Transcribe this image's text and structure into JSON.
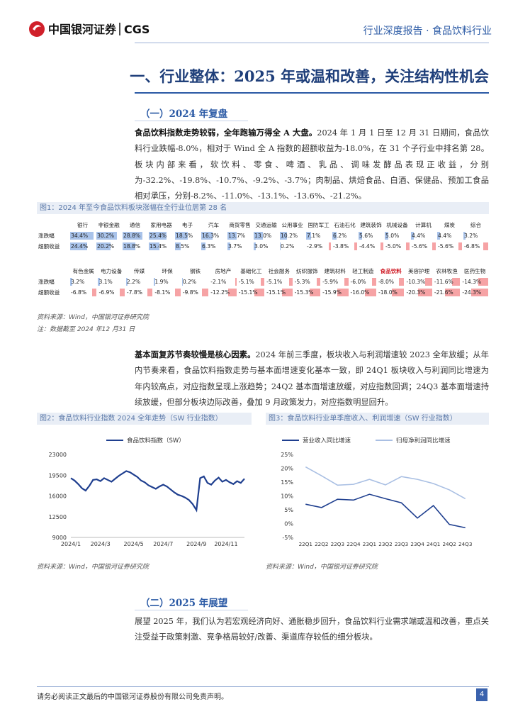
{
  "header": {
    "logo_cn": "中国银河证券",
    "logo_en": "CGS",
    "report_type": "行业深度报告 · 食品饮料行业"
  },
  "section_title": "一、行业整体：2025 年或温和改善，关注结构性机会",
  "subsection1": {
    "title": "（一）2024 年复盘",
    "paragraph1": {
      "lead": "食品饮料指数走势较弱，全年跑输万得全 A 大盘。",
      "text": "2024 年 1 月 1 日至 12 月 31 日期间，食品饮料行业跌幅-8.0%，相对于 Wind 全 A 指数的超额收益为-18.0%，在 31 个子行业中排名第 28。板块内部来看，软饮料、零食、啤酒、乳品、调味发酵品表现正收益，分别为-32.2%、-19.8%、-10.7%、-9.2%、-3.7%；肉制品、烘焙食品、白酒、保健品、预加工食品相对承压，分别-8.2%、-11.0%、-13.1%、-13.6%、-21.2%。"
    },
    "figure1": {
      "title": "图1：2024 年至今食品饮料板块涨幅在全行业位居第 28 名",
      "row_labels": [
        "涨跌幅",
        "超额收益"
      ],
      "highlight": "食品饮料",
      "blocks": [
        {
          "headers": [
            "银行",
            "非银金融",
            "通信",
            "家用电器",
            "电子",
            "汽车",
            "商贸零售",
            "交通运输",
            "公用事业",
            "国防军工",
            "石油石化",
            "建筑装饰",
            "机械设备",
            "计算机",
            "煤炭",
            "综合"
          ],
          "rows": [
            [
              "34.4%",
              "30.2%",
              "28.8%",
              "25.4%",
              "18.5%",
              "16.3%",
              "13.7%",
              "13.0%",
              "10.2%",
              "7.1%",
              "6.2%",
              "5.6%",
              "5.0%",
              "4.4%",
              "4.4%",
              "3.2%"
            ],
            [
              "24.4%",
              "20.2%",
              "18.8%",
              "15.4%",
              "8.5%",
              "6.3%",
              "3.7%",
              "3.0%",
              "0.2%",
              "-2.9%",
              "-3.8%",
              "-4.4%",
              "-5.0%",
              "-5.6%",
              "-5.6%",
              "-6.8%"
            ]
          ]
        },
        {
          "headers": [
            "有色金属",
            "电力设备",
            "传媒",
            "环保",
            "钢铁",
            "房地产",
            "基础化工",
            "社会服务",
            "纺织服饰",
            "建筑材料",
            "轻工制造",
            "食品饮料",
            "美容护理",
            "农林牧渔",
            "医药生物"
          ],
          "rows": [
            [
              "3.2%",
              "3.1%",
              "2.2%",
              "1.9%",
              "0.2%",
              "-2.1%",
              "-5.1%",
              "-5.1%",
              "-5.3%",
              "-5.9%",
              "-6.0%",
              "-8.0%",
              "-10.3%",
              "-11.6%",
              "-14.3%"
            ],
            [
              "-6.8%",
              "-6.9%",
              "-7.8%",
              "-8.1%",
              "-9.8%",
              "-12.2%",
              "-15.1%",
              "-15.1%",
              "-15.3%",
              "-15.9%",
              "-16.0%",
              "-18.0%",
              "-20.3%",
              "-21.6%",
              "-24.3%"
            ]
          ]
        }
      ],
      "source": "资料来源：Wind，中国银河证券研究院",
      "note": "注：数据截至 2024 年12 月31 日"
    },
    "paragraph2": {
      "lead": "基本面复苏节奏较慢是核心因素。",
      "text": "2024 年前三季度，板块收入与利润增速较 2023 全年放缓；从年内节奏来看，食品饮料指数走势与基本面增速变化基本一致，即 24Q1 板块收入与利润同比增速为年内较高点，对应指数呈现上涨趋势；24Q2 基本面增速放缓，对应指数回调；24Q3 基本面增速持续放缓，但部分板块边际改善，叠加 9 月政策发力，对应指数明显回升。"
    }
  },
  "chart_data": [
    {
      "type": "line",
      "title": "图2：食品饮料行业指数 2024 全年走势（SW 行业指数）",
      "categories": [
        "2024/1",
        null,
        null,
        null,
        null,
        null,
        null,
        null,
        "2024/3",
        null,
        null,
        null,
        null,
        null,
        null,
        null,
        null,
        "2024/5",
        null,
        null,
        null,
        null,
        null,
        null,
        null,
        "2024/7",
        null,
        null,
        null,
        null,
        null,
        null,
        null,
        null,
        "2024/9",
        null,
        null,
        null,
        null,
        null,
        null,
        null,
        "2024/11",
        null,
        null,
        null,
        null,
        null
      ],
      "series": [
        {
          "name": "食品饮料指数（SW）",
          "color": "#1f3f8f",
          "values": [
            19000,
            18600,
            18000,
            17300,
            16900,
            17700,
            18700,
            18800,
            18500,
            19000,
            18700,
            18400,
            18900,
            19400,
            19800,
            20200,
            20000,
            19600,
            19200,
            18600,
            18300,
            17800,
            17500,
            17200,
            17600,
            17900,
            17600,
            17100,
            16600,
            16200,
            16000,
            15700,
            15300,
            14600,
            13600,
            19000,
            19300,
            18200,
            17900,
            18600,
            19100,
            18400,
            18700,
            18300,
            18000,
            18500,
            18200,
            18900
          ]
        }
      ],
      "ylim": [
        9000,
        23000
      ],
      "yticks": [
        9000,
        12500,
        16000,
        19500,
        23000
      ],
      "source": "资料来源：Wind，中国银河证券研究院"
    },
    {
      "type": "line",
      "title": "图3：食品饮料行业单季度收入、利润增速（SW 行业指数）",
      "categories": [
        "22Q1",
        "22Q2",
        "22Q3",
        "22Q4",
        "23Q1",
        "23Q2",
        "23Q3",
        "23Q4",
        "24Q1",
        "24Q2",
        "24Q3"
      ],
      "series": [
        {
          "name": "营业收入同比增速",
          "color": "#1f3f8f",
          "values": [
            7.0,
            5.8,
            8.8,
            8.5,
            10.6,
            9.0,
            7.5,
            2.0,
            6.5,
            -0.3,
            -1.5
          ]
        },
        {
          "name": "归母净利润同比增速",
          "color": "#a9bfe3",
          "values": [
            20.5,
            17.3,
            13.9,
            14.2,
            16.0,
            14.0,
            17.0,
            16.0,
            14.5,
            12.2,
            9.0
          ]
        }
      ],
      "ylim": [
        -5,
        25
      ],
      "yticks": [
        {
          "value": -5,
          "label": "-5%"
        },
        {
          "value": 0,
          "label": "0%"
        },
        {
          "value": 5,
          "label": "5%"
        },
        {
          "value": 10,
          "label": "10%"
        },
        {
          "value": 15,
          "label": "15%"
        },
        {
          "value": 20,
          "label": "20%"
        },
        {
          "value": 25,
          "label": "25%"
        }
      ],
      "source": "资料来源：Wind，中国银河证券研究院"
    }
  ],
  "subsection2": {
    "title": "（二）2025 年展望",
    "paragraph": "展望 2025 年，我们认为若宏观经济向好、通胀稳步回升，食品饮料行业需求端或温和改善，重点关注受益于政策刺激、竞争格局较好/改善、渠道库存较低的细分板块。"
  },
  "footer": {
    "disclaimer": "请务必阅读正文最后的中国银河证券股份有限公司免责声明。",
    "page": "4"
  }
}
